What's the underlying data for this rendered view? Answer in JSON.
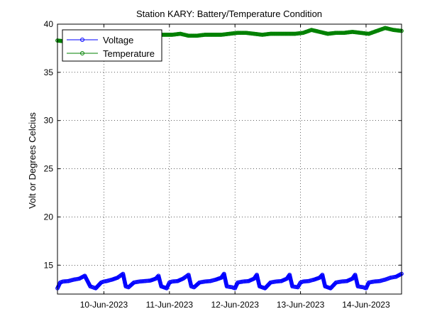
{
  "chart_data": {
    "type": "line",
    "title": "Station KARY: Battery/Temperature Condition",
    "xlabel": "",
    "ylabel": "Volt or Degrees Celcius",
    "x_tick_labels": [
      "10-Jun-2023",
      "11-Jun-2023",
      "12-Jun-2023",
      "13-Jun-2023",
      "14-Jun-2023"
    ],
    "x_tick_dates": [
      "2023-06-10",
      "2023-06-11",
      "2023-06-12",
      "2023-06-13",
      "2023-06-14"
    ],
    "xlim": [
      "2023-06-09T07:00",
      "2023-06-14T13:00"
    ],
    "ylim": [
      12,
      40
    ],
    "y_ticks": [
      15,
      20,
      25,
      30,
      35,
      40
    ],
    "grid": true,
    "legend_position": "top-left",
    "series": [
      {
        "name": "Voltage",
        "color": "#0000ff",
        "marker": "circle",
        "x": [
          "2023-06-09T07:00",
          "2023-06-09T08:00",
          "2023-06-09T09:00",
          "2023-06-09T11:00",
          "2023-06-09T13:00",
          "2023-06-09T15:00",
          "2023-06-09T17:00",
          "2023-06-09T19:00",
          "2023-06-09T20:00",
          "2023-06-09T21:00",
          "2023-06-09T23:00",
          "2023-06-10T00:00",
          "2023-06-10T01:00",
          "2023-06-10T03:00",
          "2023-06-10T05:00",
          "2023-06-10T07:00",
          "2023-06-10T08:00",
          "2023-06-10T09:00",
          "2023-06-10T11:00",
          "2023-06-10T13:00",
          "2023-06-10T15:00",
          "2023-06-10T17:00",
          "2023-06-10T19:00",
          "2023-06-10T20:00",
          "2023-06-10T21:00",
          "2023-06-10T23:00",
          "2023-06-11T00:00",
          "2023-06-11T01:00",
          "2023-06-11T03:00",
          "2023-06-11T05:00",
          "2023-06-11T07:00",
          "2023-06-11T08:00",
          "2023-06-11T09:00",
          "2023-06-11T11:00",
          "2023-06-11T13:00",
          "2023-06-11T15:00",
          "2023-06-11T17:00",
          "2023-06-11T19:00",
          "2023-06-11T20:00",
          "2023-06-11T21:00",
          "2023-06-11T23:00",
          "2023-06-12T00:00",
          "2023-06-12T01:00",
          "2023-06-12T03:00",
          "2023-06-12T05:00",
          "2023-06-12T07:00",
          "2023-06-12T08:00",
          "2023-06-12T09:00",
          "2023-06-12T11:00",
          "2023-06-12T13:00",
          "2023-06-12T15:00",
          "2023-06-12T17:00",
          "2023-06-12T19:00",
          "2023-06-12T20:00",
          "2023-06-12T21:00",
          "2023-06-12T23:00",
          "2023-06-13T00:00",
          "2023-06-13T01:00",
          "2023-06-13T03:00",
          "2023-06-13T05:00",
          "2023-06-13T07:00",
          "2023-06-13T08:00",
          "2023-06-13T09:00",
          "2023-06-13T11:00",
          "2023-06-13T13:00",
          "2023-06-13T15:00",
          "2023-06-13T17:00",
          "2023-06-13T19:00",
          "2023-06-13T20:00",
          "2023-06-13T21:00",
          "2023-06-13T23:00",
          "2023-06-14T00:00",
          "2023-06-14T01:00",
          "2023-06-14T03:00",
          "2023-06-14T05:00",
          "2023-06-14T07:00",
          "2023-06-14T08:00",
          "2023-06-14T09:00",
          "2023-06-14T11:00",
          "2023-06-14T13:00"
        ],
        "y": [
          12.6,
          13.2,
          13.3,
          13.35,
          13.5,
          13.6,
          13.9,
          12.8,
          12.7,
          12.6,
          13.2,
          13.3,
          13.35,
          13.5,
          13.7,
          14.1,
          12.8,
          12.7,
          13.2,
          13.3,
          13.35,
          13.4,
          13.6,
          13.9,
          12.8,
          12.6,
          13.2,
          13.3,
          13.35,
          13.6,
          14.0,
          12.8,
          12.7,
          13.2,
          13.3,
          13.35,
          13.5,
          13.7,
          14.1,
          12.8,
          12.7,
          12.6,
          13.2,
          13.3,
          13.35,
          13.6,
          14.0,
          12.8,
          12.6,
          13.2,
          13.3,
          13.35,
          13.6,
          14.0,
          12.8,
          12.7,
          13.2,
          13.3,
          13.35,
          13.5,
          13.7,
          14.0,
          12.8,
          12.6,
          13.2,
          13.3,
          13.35,
          13.6,
          14.0,
          12.8,
          12.7,
          12.6,
          13.2,
          13.3,
          13.35,
          13.5,
          13.6,
          13.7,
          13.8,
          14.1
        ]
      },
      {
        "name": "Temperature",
        "color": "#008000",
        "marker": "circle",
        "x": [
          "2023-06-09T07:00",
          "2023-06-09T10:00",
          "2023-06-09T13:00",
          "2023-06-09T16:00",
          "2023-06-09T19:00",
          "2023-06-09T22:00",
          "2023-06-10T01:00",
          "2023-06-10T04:00",
          "2023-06-10T07:00",
          "2023-06-10T10:00",
          "2023-06-10T13:00",
          "2023-06-10T16:00",
          "2023-06-10T19:00",
          "2023-06-10T22:00",
          "2023-06-11T01:00",
          "2023-06-11T04:00",
          "2023-06-11T07:00",
          "2023-06-11T10:00",
          "2023-06-11T13:00",
          "2023-06-11T16:00",
          "2023-06-11T19:00",
          "2023-06-11T22:00",
          "2023-06-12T01:00",
          "2023-06-12T04:00",
          "2023-06-12T07:00",
          "2023-06-12T10:00",
          "2023-06-12T13:00",
          "2023-06-12T16:00",
          "2023-06-12T19:00",
          "2023-06-12T22:00",
          "2023-06-13T01:00",
          "2023-06-13T04:00",
          "2023-06-13T07:00",
          "2023-06-13T10:00",
          "2023-06-13T13:00",
          "2023-06-13T16:00",
          "2023-06-13T19:00",
          "2023-06-13T22:00",
          "2023-06-14T01:00",
          "2023-06-14T04:00",
          "2023-06-14T07:00",
          "2023-06-14T10:00",
          "2023-06-14T13:00"
        ],
        "y": [
          38.3,
          38.2,
          38.4,
          38.5,
          38.7,
          38.9,
          39.0,
          39.0,
          39.0,
          39.1,
          39.0,
          38.9,
          38.9,
          38.9,
          38.9,
          39.0,
          38.8,
          38.8,
          38.9,
          38.9,
          38.9,
          39.0,
          39.1,
          39.1,
          39.0,
          38.9,
          39.0,
          39.0,
          39.0,
          39.0,
          39.1,
          39.4,
          39.2,
          39.0,
          39.1,
          39.1,
          39.2,
          39.1,
          39.0,
          39.3,
          39.6,
          39.4,
          39.3
        ]
      }
    ]
  }
}
